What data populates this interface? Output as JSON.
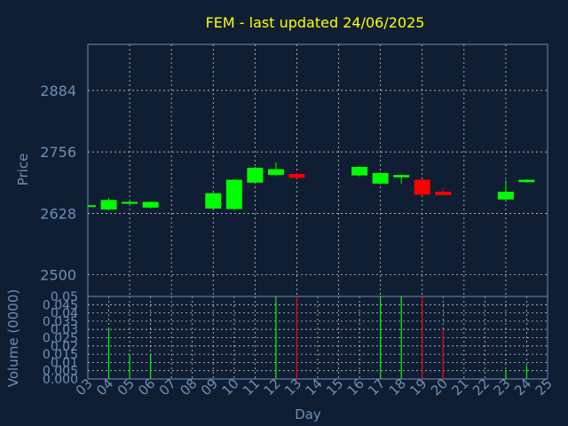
{
  "chart_data": [
    {
      "type": "candlestick",
      "title": "FEM - last updated 24/06/2025",
      "ylabel": "Price",
      "yticks": [
        2500,
        2628,
        2756,
        2884
      ],
      "ylim": [
        2455,
        2980
      ],
      "grid": true,
      "candles": [
        {
          "day": "03",
          "open": 2642,
          "close": 2645,
          "high": 2646,
          "low": 2641,
          "dir": "up"
        },
        {
          "day": "04",
          "open": 2636,
          "close": 2656,
          "high": 2660,
          "low": 2634,
          "dir": "up"
        },
        {
          "day": "05",
          "open": 2648,
          "close": 2652,
          "high": 2654,
          "low": 2646,
          "dir": "up"
        },
        {
          "day": "06",
          "open": 2640,
          "close": 2652,
          "high": 2653,
          "low": 2638,
          "dir": "up"
        },
        {
          "day": "09",
          "open": 2638,
          "close": 2670,
          "high": 2671,
          "low": 2636,
          "dir": "up"
        },
        {
          "day": "10",
          "open": 2637,
          "close": 2698,
          "high": 2699,
          "low": 2635,
          "dir": "up"
        },
        {
          "day": "11",
          "open": 2692,
          "close": 2723,
          "high": 2725,
          "low": 2690,
          "dir": "up"
        },
        {
          "day": "12",
          "open": 2708,
          "close": 2720,
          "high": 2734,
          "low": 2706,
          "dir": "up"
        },
        {
          "day": "13",
          "open": 2710,
          "close": 2702,
          "high": 2712,
          "low": 2700,
          "dir": "down"
        },
        {
          "day": "16",
          "open": 2707,
          "close": 2725,
          "high": 2726,
          "low": 2705,
          "dir": "up"
        },
        {
          "day": "17",
          "open": 2690,
          "close": 2712,
          "high": 2714,
          "low": 2688,
          "dir": "up"
        },
        {
          "day": "18",
          "open": 2703,
          "close": 2708,
          "high": 2709,
          "low": 2690,
          "dir": "up"
        },
        {
          "day": "19",
          "open": 2698,
          "close": 2667,
          "high": 2699,
          "low": 2665,
          "dir": "down"
        },
        {
          "day": "20",
          "open": 2673,
          "close": 2666,
          "high": 2680,
          "low": 2665,
          "dir": "down"
        },
        {
          "day": "23",
          "open": 2657,
          "close": 2673,
          "high": 2697,
          "low": 2655,
          "dir": "up"
        },
        {
          "day": "24",
          "open": 2693,
          "close": 2698,
          "high": 2699,
          "low": 2692,
          "dir": "up"
        }
      ]
    },
    {
      "type": "bar",
      "ylabel": "Volume (0000)",
      "xlabel": "Day",
      "ylim": [
        0,
        0.05
      ],
      "yticks": [
        "0.000",
        "0.005",
        "0.01",
        "0.015",
        "0.02",
        "0.025",
        "0.03",
        "0.035",
        "0.04",
        "0.045",
        "0.05"
      ],
      "ytick_values": [
        0,
        0.005,
        0.01,
        0.015,
        0.02,
        0.025,
        0.03,
        0.035,
        0.04,
        0.045,
        0.05
      ],
      "bars": [
        {
          "day": "04",
          "value": 0.031,
          "dir": "up"
        },
        {
          "day": "05",
          "value": 0.015,
          "dir": "up"
        },
        {
          "day": "06",
          "value": 0.015,
          "dir": "up"
        },
        {
          "day": "12",
          "value": 0.05,
          "dir": "up"
        },
        {
          "day": "13",
          "value": 0.05,
          "dir": "down"
        },
        {
          "day": "17",
          "value": 0.05,
          "dir": "up"
        },
        {
          "day": "18",
          "value": 0.05,
          "dir": "up"
        },
        {
          "day": "19",
          "value": 0.05,
          "dir": "down"
        },
        {
          "day": "20",
          "value": 0.03,
          "dir": "down"
        },
        {
          "day": "23",
          "value": 0.005,
          "dir": "up"
        },
        {
          "day": "24",
          "value": 0.008,
          "dir": "up"
        }
      ],
      "xticks": [
        "03",
        "04",
        "05",
        "06",
        "07",
        "08",
        "09",
        "10",
        "11",
        "12",
        "13",
        "14",
        "15",
        "16",
        "17",
        "18",
        "19",
        "20",
        "21",
        "22",
        "23",
        "24",
        "25"
      ]
    }
  ],
  "colors": {
    "background": "#0f1e33",
    "up": "#00ff00",
    "down": "#ff0000",
    "grid": "#c0c8d8",
    "axis_text": "#6f8fb5",
    "title": "#ffff00",
    "frame": "#6f8fb5"
  }
}
